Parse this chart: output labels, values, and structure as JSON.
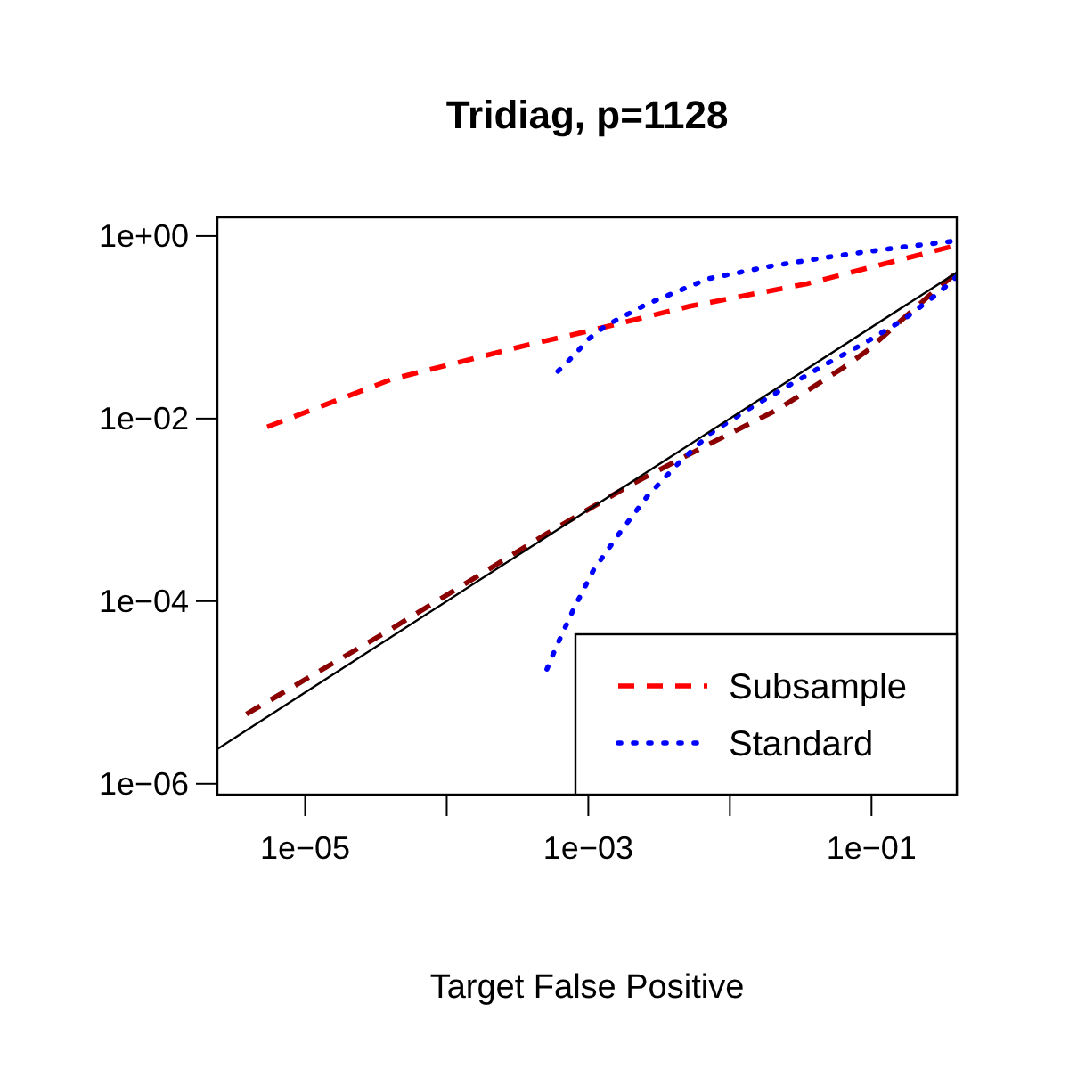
{
  "chart_data": {
    "type": "line",
    "title": "Tridiag, p=1128",
    "xlabel": "Target False Positive",
    "log": "xy",
    "xlim": [
      2.4e-06,
      0.4
    ],
    "ylim": [
      7.6e-07,
      1.6
    ],
    "xticks": [
      {
        "value": 1e-05,
        "label": "1e−05"
      },
      {
        "value": 0.0001,
        "label": null
      },
      {
        "value": 0.001,
        "label": "1e−03"
      },
      {
        "value": 0.01,
        "label": null
      },
      {
        "value": 0.1,
        "label": "1e−01"
      }
    ],
    "yticks": [
      {
        "value": 1,
        "label": "1e+00"
      },
      {
        "value": 0.01,
        "label": "1e−02"
      },
      {
        "value": 0.0001,
        "label": "1e−04"
      },
      {
        "value": 1e-06,
        "label": "1e−06"
      }
    ],
    "legend": "bottom right",
    "grid": false,
    "series": [
      {
        "name": "Subsample",
        "color": "#ff0000",
        "line_style": "dashed",
        "x": [
          5.4e-06,
          4.1e-05,
          0.00034,
          0.00092,
          0.0052,
          0.035,
          0.36
        ],
        "values": [
          0.0081,
          0.027,
          0.062,
          0.088,
          0.17,
          0.3,
          0.76
        ]
      },
      {
        "color": "#8b0000",
        "line_style": "dashed",
        "x": [
          3.85e-06,
          4.1e-05,
          0.00051,
          0.00195,
          0.0062,
          0.022,
          0.063,
          0.094,
          0.27,
          0.38
        ],
        "values": [
          5.8e-06,
          5e-05,
          0.00055,
          0.00185,
          0.0047,
          0.0127,
          0.036,
          0.056,
          0.24,
          0.37
        ]
      },
      {
        "name": "Standard",
        "color": "#0000ff",
        "line_style": "dotted",
        "x": [
          0.00061,
          0.00079,
          0.001,
          0.00134,
          0.0026,
          0.007,
          0.0198,
          0.058,
          0.17,
          0.36
        ],
        "values": [
          0.033,
          0.049,
          0.074,
          0.105,
          0.18,
          0.34,
          0.47,
          0.61,
          0.76,
          0.87
        ]
      },
      {
        "color": "#0000ff",
        "line_style": "dotted",
        "x": [
          0.00051,
          0.00059,
          0.00079,
          0.00109,
          0.00168,
          0.0026,
          0.0043,
          0.0072,
          0.0135,
          0.026,
          0.047,
          0.089,
          0.168,
          0.3,
          0.4
        ],
        "values": [
          1.8e-05,
          3.1e-05,
          8.3e-05,
          0.00022,
          0.00057,
          0.0014,
          0.0032,
          0.0068,
          0.0127,
          0.023,
          0.039,
          0.067,
          0.121,
          0.24,
          0.36
        ]
      },
      {
        "color": "#000000",
        "line_style": "solid",
        "x": [
          2.4e-06,
          0.4
        ],
        "values": [
          2.4e-06,
          0.4
        ]
      }
    ]
  }
}
